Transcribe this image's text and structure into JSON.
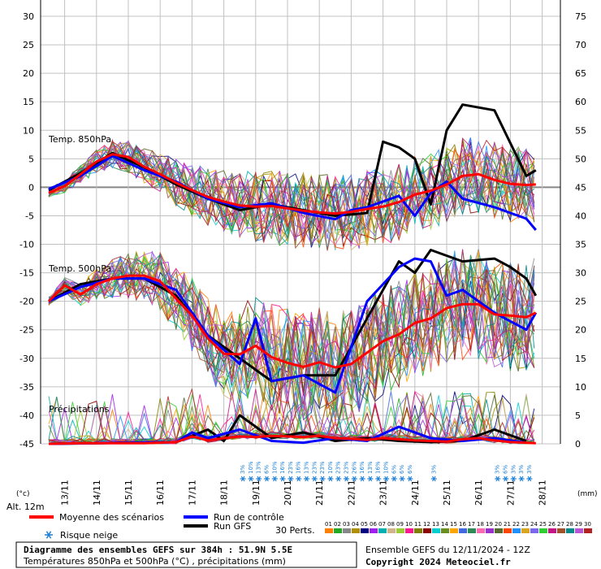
{
  "chart_data": {
    "type": "line",
    "title": "Diagramme des ensembles GEFS sur 384h : 51.9N 5.5E",
    "subtitle": "Températures 850hPa et 500hPa (°C) , précipitations (mm)",
    "source": "Ensemble GEFS du 12/11/2024 - 12Z",
    "copyright": "Copyright 2024 Meteociel.fr",
    "altitude": "Alt. 12m",
    "left_unit": "(°c)",
    "right_unit": "(mm)",
    "left_ticks": [
      30,
      25,
      20,
      15,
      10,
      5,
      0,
      -5,
      -10,
      -15,
      -20,
      -25,
      -30,
      -35,
      -40,
      -45
    ],
    "right_ticks": [
      75,
      70,
      65,
      60,
      55,
      50,
      45,
      40,
      35,
      30,
      25,
      20,
      15,
      10,
      5,
      0
    ],
    "ylim": [
      -45,
      30
    ],
    "x_dates": [
      "13/11",
      "14/11",
      "15/11",
      "16/11",
      "17/11",
      "18/11",
      "19/11",
      "20/11",
      "21/11",
      "22/11",
      "23/11",
      "24/11",
      "25/11",
      "26/11",
      "27/11",
      "28/11"
    ],
    "annotations": {
      "t850": "Temp. 850hPa",
      "t500": "Temp. 500hPa",
      "precip": "Précipitations"
    },
    "snow_risk": [
      {
        "day": 6.1,
        "pct": "3%"
      },
      {
        "day": 6.35,
        "pct": "10%"
      },
      {
        "day": 6.6,
        "pct": "13%"
      },
      {
        "day": 6.85,
        "pct": "6%"
      },
      {
        "day": 7.1,
        "pct": "10%"
      },
      {
        "day": 7.35,
        "pct": "16%"
      },
      {
        "day": 7.6,
        "pct": "23%"
      },
      {
        "day": 7.85,
        "pct": "16%"
      },
      {
        "day": 8.1,
        "pct": "13%"
      },
      {
        "day": 8.35,
        "pct": "23%"
      },
      {
        "day": 8.6,
        "pct": "23%"
      },
      {
        "day": 8.85,
        "pct": "10%"
      },
      {
        "day": 9.1,
        "pct": "23%"
      },
      {
        "day": 9.35,
        "pct": "23%"
      },
      {
        "day": 9.6,
        "pct": "26%"
      },
      {
        "day": 9.85,
        "pct": "16%"
      },
      {
        "day": 10.1,
        "pct": "13%"
      },
      {
        "day": 10.35,
        "pct": "16%"
      },
      {
        "day": 10.6,
        "pct": "10%"
      },
      {
        "day": 10.85,
        "pct": "6%"
      },
      {
        "day": 11.1,
        "pct": "6%"
      },
      {
        "day": 11.35,
        "pct": "6%"
      },
      {
        "day": 12.1,
        "pct": "3%"
      },
      {
        "day": 14.1,
        "pct": "3%"
      },
      {
        "day": 14.35,
        "pct": "6%"
      },
      {
        "day": 14.6,
        "pct": "3%"
      },
      {
        "day": 14.85,
        "pct": "3%"
      },
      {
        "day": 15.1,
        "pct": "3%"
      }
    ],
    "series": [
      {
        "name": "Moyenne des scénarios",
        "color": "#ff0000",
        "t850": [
          [
            0,
            -1
          ],
          [
            0.5,
            0.2
          ],
          [
            1,
            2.3
          ],
          [
            1.5,
            4.5
          ],
          [
            2,
            5.8
          ],
          [
            2.5,
            5.3
          ],
          [
            3,
            3.6
          ],
          [
            3.5,
            2.3
          ],
          [
            4,
            0.8
          ],
          [
            4.5,
            -0.5
          ],
          [
            5,
            -1.7
          ],
          [
            5.5,
            -2.5
          ],
          [
            6,
            -3.2
          ],
          [
            6.5,
            -3.4
          ],
          [
            7,
            -3.3
          ],
          [
            7.5,
            -3.7
          ],
          [
            8,
            -4.1
          ],
          [
            8.5,
            -4.4
          ],
          [
            9,
            -4.6
          ],
          [
            9.5,
            -4.3
          ],
          [
            10,
            -3.8
          ],
          [
            10.5,
            -3.4
          ],
          [
            11,
            -2.6
          ],
          [
            11.5,
            -1.3
          ],
          [
            12,
            -0.6
          ],
          [
            12.5,
            0.5
          ],
          [
            13,
            2
          ],
          [
            13.5,
            2.3
          ],
          [
            14,
            1.3
          ],
          [
            14.5,
            0.6
          ],
          [
            15,
            0.4
          ],
          [
            15.3,
            0.5
          ]
        ],
        "t500": [
          [
            0,
            -20
          ],
          [
            0.5,
            -17.2
          ],
          [
            1,
            -18.8
          ],
          [
            1.5,
            -17
          ],
          [
            2,
            -16
          ],
          [
            2.5,
            -15.5
          ],
          [
            3,
            -15.5
          ],
          [
            3.5,
            -16.5
          ],
          [
            4,
            -19.5
          ],
          [
            4.5,
            -22.5
          ],
          [
            5,
            -26.5
          ],
          [
            5.5,
            -29.2
          ],
          [
            6,
            -29.3
          ],
          [
            6.5,
            -27.8
          ],
          [
            7,
            -29.8
          ],
          [
            7.5,
            -30.8
          ],
          [
            8,
            -31.5
          ],
          [
            8.5,
            -30.7
          ],
          [
            9,
            -31.6
          ],
          [
            9.5,
            -31
          ],
          [
            10,
            -29
          ],
          [
            10.5,
            -27
          ],
          [
            11,
            -25.8
          ],
          [
            11.5,
            -23.8
          ],
          [
            12,
            -23
          ],
          [
            12.5,
            -21.2
          ],
          [
            13,
            -20.5
          ],
          [
            13.5,
            -20.5
          ],
          [
            14,
            -22.3
          ],
          [
            14.5,
            -22.5
          ],
          [
            15,
            -22.8
          ],
          [
            15.3,
            -22
          ]
        ],
        "precip": [
          [
            0,
            0
          ],
          [
            1,
            0.1
          ],
          [
            2,
            0.1
          ],
          [
            3,
            0.1
          ],
          [
            4,
            0.3
          ],
          [
            4.5,
            1.3
          ],
          [
            5,
            0.6
          ],
          [
            5.5,
            1
          ],
          [
            6,
            1.3
          ],
          [
            6.5,
            1.2
          ],
          [
            7,
            1.4
          ],
          [
            7.5,
            1.3
          ],
          [
            8,
            1.2
          ],
          [
            8.5,
            1.4
          ],
          [
            9,
            1
          ],
          [
            9.5,
            0.9
          ],
          [
            10,
            0.7
          ],
          [
            10.5,
            1
          ],
          [
            11,
            0.8
          ],
          [
            11.5,
            0.6
          ],
          [
            12,
            0.5
          ],
          [
            12.5,
            0.4
          ],
          [
            13,
            0.8
          ],
          [
            13.5,
            1
          ],
          [
            14,
            0.6
          ],
          [
            14.5,
            0.3
          ],
          [
            15,
            0.2
          ],
          [
            15.3,
            0.1
          ]
        ]
      },
      {
        "name": "Run de contrôle",
        "color": "#0000ff",
        "t850": [
          [
            0,
            -0.3
          ],
          [
            1,
            2
          ],
          [
            2,
            5.5
          ],
          [
            3,
            3
          ],
          [
            4,
            1
          ],
          [
            5,
            -2
          ],
          [
            6,
            -3.5
          ],
          [
            7,
            -2.8
          ],
          [
            8,
            -4.5
          ],
          [
            9,
            -5.6
          ],
          [
            9.5,
            -4
          ],
          [
            10,
            -3.5
          ],
          [
            11,
            -1.5
          ],
          [
            11.5,
            -5
          ],
          [
            12,
            -1
          ],
          [
            12.5,
            1
          ],
          [
            13,
            -2
          ],
          [
            14,
            -3.5
          ],
          [
            15,
            -5.5
          ],
          [
            15.3,
            -7.5
          ]
        ],
        "t500": [
          [
            0,
            -20
          ],
          [
            1,
            -17.5
          ],
          [
            2,
            -16
          ],
          [
            3,
            -16
          ],
          [
            4,
            -18
          ],
          [
            5,
            -26
          ],
          [
            6,
            -31
          ],
          [
            6.5,
            -23
          ],
          [
            7,
            -34
          ],
          [
            8,
            -33
          ],
          [
            9,
            -36
          ],
          [
            10,
            -20
          ],
          [
            10.5,
            -17
          ],
          [
            11,
            -14
          ],
          [
            11.5,
            -12.5
          ],
          [
            12,
            -13
          ],
          [
            12.5,
            -19
          ],
          [
            13,
            -18
          ],
          [
            14,
            -22
          ],
          [
            15,
            -25
          ],
          [
            15.3,
            -22
          ]
        ],
        "precip": [
          [
            0,
            0
          ],
          [
            4,
            0.3
          ],
          [
            4.5,
            2
          ],
          [
            5,
            1
          ],
          [
            6,
            2.5
          ],
          [
            7,
            0.5
          ],
          [
            8,
            0.2
          ],
          [
            9,
            1
          ],
          [
            10,
            0.5
          ],
          [
            11,
            3
          ],
          [
            12,
            1
          ],
          [
            13,
            0.5
          ],
          [
            14,
            1
          ],
          [
            15,
            0.2
          ]
        ]
      },
      {
        "name": "Run GFS",
        "color": "#000000",
        "t850": [
          [
            0,
            -0.5
          ],
          [
            1,
            2.5
          ],
          [
            2,
            6
          ],
          [
            3,
            3.5
          ],
          [
            4,
            0.5
          ],
          [
            5,
            -2
          ],
          [
            6,
            -4
          ],
          [
            7,
            -3
          ],
          [
            8,
            -4
          ],
          [
            9,
            -5
          ],
          [
            10,
            -4.5
          ],
          [
            10.5,
            8
          ],
          [
            11,
            7
          ],
          [
            11.5,
            5
          ],
          [
            12,
            -3
          ],
          [
            12.5,
            10
          ],
          [
            13,
            14.5
          ],
          [
            14,
            13.5
          ],
          [
            15,
            2
          ],
          [
            15.3,
            3
          ]
        ],
        "t500": [
          [
            0,
            -20
          ],
          [
            1,
            -17
          ],
          [
            2,
            -16
          ],
          [
            3,
            -16
          ],
          [
            4,
            -19
          ],
          [
            5,
            -26
          ],
          [
            6,
            -30
          ],
          [
            7,
            -34
          ],
          [
            8,
            -33
          ],
          [
            9,
            -33
          ],
          [
            9.5,
            -28
          ],
          [
            10,
            -23
          ],
          [
            11,
            -13
          ],
          [
            11.5,
            -15
          ],
          [
            12,
            -11
          ],
          [
            13,
            -13
          ],
          [
            14,
            -12.5
          ],
          [
            14.5,
            -14
          ],
          [
            15,
            -16
          ],
          [
            15.3,
            -19
          ]
        ],
        "precip": [
          [
            0,
            0
          ],
          [
            4,
            0.3
          ],
          [
            5,
            2.5
          ],
          [
            5.5,
            0.5
          ],
          [
            6,
            5
          ],
          [
            7,
            1
          ],
          [
            8,
            2
          ],
          [
            9,
            0.5
          ],
          [
            10,
            1
          ],
          [
            11,
            0.5
          ],
          [
            12,
            0.3
          ],
          [
            13,
            0.5
          ],
          [
            14,
            2.5
          ],
          [
            15,
            0.5
          ]
        ]
      }
    ],
    "perturbations_label": "30 Perts.",
    "perturbation_ids": [
      "01",
      "02",
      "03",
      "04",
      "05",
      "06",
      "07",
      "08",
      "09",
      "10",
      "11",
      "12",
      "13",
      "14",
      "15",
      "16",
      "17",
      "18",
      "19",
      "20",
      "21",
      "22",
      "23",
      "24",
      "25",
      "26",
      "27",
      "28",
      "29",
      "30"
    ],
    "perturbation_colors": [
      "#ff7f00",
      "#22aa22",
      "#888888",
      "#b09000",
      "#000080",
      "#a020f0",
      "#00b0b0",
      "#d2b48c",
      "#9acd32",
      "#ff1493",
      "#808000",
      "#8b0000",
      "#00ced1",
      "#6b8e23",
      "#ffa500",
      "#4169e1",
      "#2e8b57",
      "#ff69b4",
      "#9932cc",
      "#556b2f",
      "#ff4500",
      "#1e90ff",
      "#daa520",
      "#7b68ee",
      "#32cd32",
      "#c71585",
      "#a0522d",
      "#008b8b",
      "#ba55d3",
      "#b22222"
    ]
  },
  "legend": {
    "mean": "Moyenne des scénarios",
    "control": "Run de contrôle",
    "gfs": "Run GFS",
    "snow": "Risque neige"
  },
  "colors": {
    "mean": "#ff0000",
    "control": "#0000ff",
    "gfs": "#000000",
    "snow": "#1b7fd6",
    "grid": "#c0c0c0"
  }
}
